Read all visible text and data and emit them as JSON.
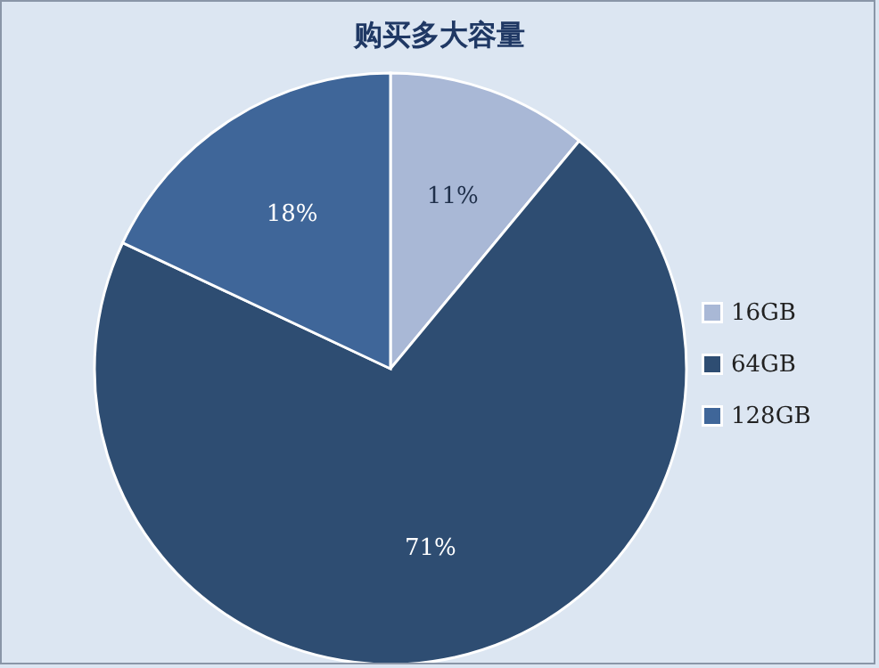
{
  "chart_data": {
    "type": "pie",
    "title": "购买多大容量",
    "categories": [
      "16GB",
      "64GB",
      "128GB"
    ],
    "values": [
      11,
      71,
      18
    ],
    "value_labels": [
      "11%",
      "71%",
      "18%"
    ],
    "colors": [
      "#a9b8d6",
      "#2e4d72",
      "#3f6699"
    ],
    "legend": "right"
  }
}
